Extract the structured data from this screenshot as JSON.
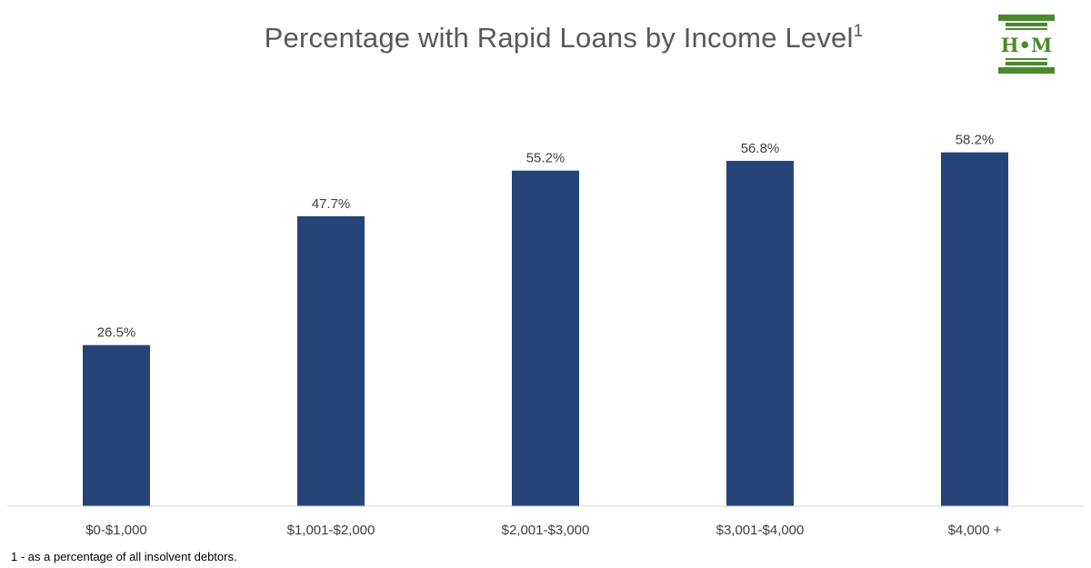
{
  "chart_data": {
    "type": "bar",
    "title": "Percentage with Rapid Loans by Income Level",
    "title_superscript": "1",
    "categories": [
      "$0-$1,000",
      "$1,001-$2,000",
      "$2,001-$3,000",
      "$3,001-$4,000",
      "$4,000 +"
    ],
    "values": [
      26.5,
      47.7,
      55.2,
      56.8,
      58.2
    ],
    "data_labels": [
      "26.5%",
      "47.7%",
      "55.2%",
      "56.8%",
      "58.2%"
    ],
    "xlabel": "",
    "ylabel": "",
    "ylim": [
      0,
      70
    ],
    "grid": false,
    "legend": "none",
    "bar_color": "#264478"
  },
  "logo": {
    "text": "H•M",
    "color": "#4a8a2c"
  },
  "footnote": "1 - as a percentage of all insolvent debtors."
}
